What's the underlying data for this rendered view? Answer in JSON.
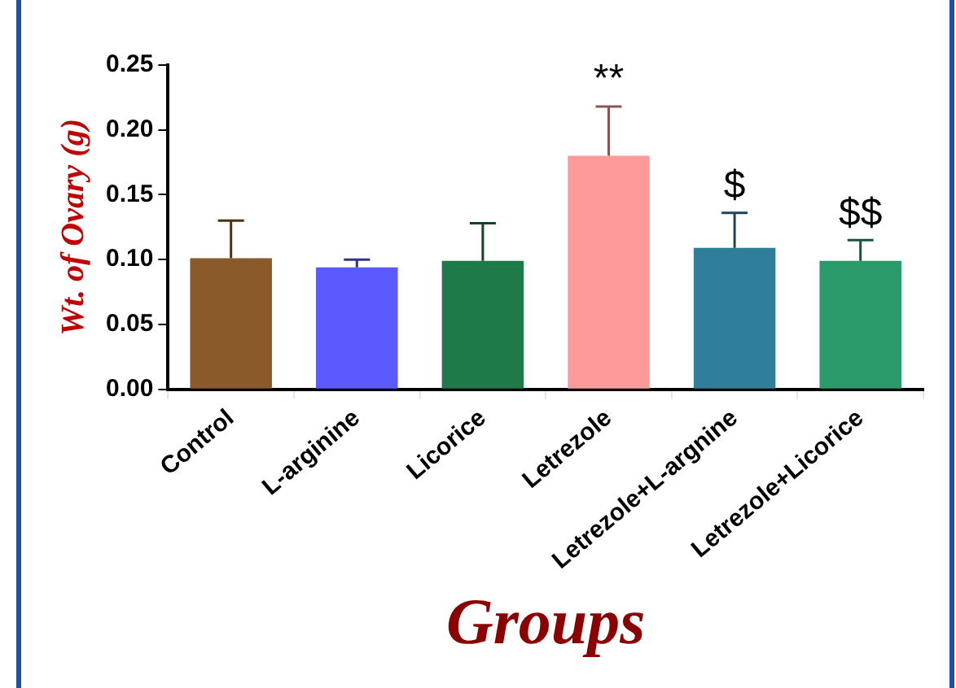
{
  "chart_data": {
    "type": "bar",
    "xlabel": "Groups",
    "ylabel": "Wt. of Ovary (g)",
    "categories": [
      "Control",
      "L-arginine",
      "Licorice",
      "Letrezole",
      "Letrezole+L-argnine",
      "Letrezole+Licorice"
    ],
    "values": [
      0.101,
      0.094,
      0.099,
      0.18,
      0.109,
      0.099
    ],
    "errors": [
      [
        0.101,
        0.13
      ],
      [
        0.094,
        0.1
      ],
      [
        0.099,
        0.128
      ],
      [
        0.18,
        0.218
      ],
      [
        0.109,
        0.136
      ],
      [
        0.099,
        0.115
      ]
    ],
    "colors": [
      "#8b5a2b",
      "#5a5aff",
      "#1f7a4a",
      "#ff9a9a",
      "#2f7f9a",
      "#2a9a6a"
    ],
    "ylim": [
      0,
      0.25
    ],
    "yticks": [
      {
        "value": 0,
        "label": "0.00"
      },
      {
        "value": 0.05,
        "label": "0.05"
      },
      {
        "value": 0.1,
        "label": "0.10"
      },
      {
        "value": 0.15,
        "label": "0.15"
      },
      {
        "value": 0.2,
        "label": "0.20"
      },
      {
        "value": 0.25,
        "label": "0.25"
      }
    ],
    "annotations": [
      {
        "text": "**",
        "x": "Letrezole",
        "y": 0.218
      },
      {
        "text": "$",
        "x": "Letrezole+L-argnine",
        "y": 0.136
      },
      {
        "text": "$$",
        "x": "Letrezole+Licorice",
        "y": 0.115
      }
    ],
    "grid": false,
    "legend": false
  }
}
